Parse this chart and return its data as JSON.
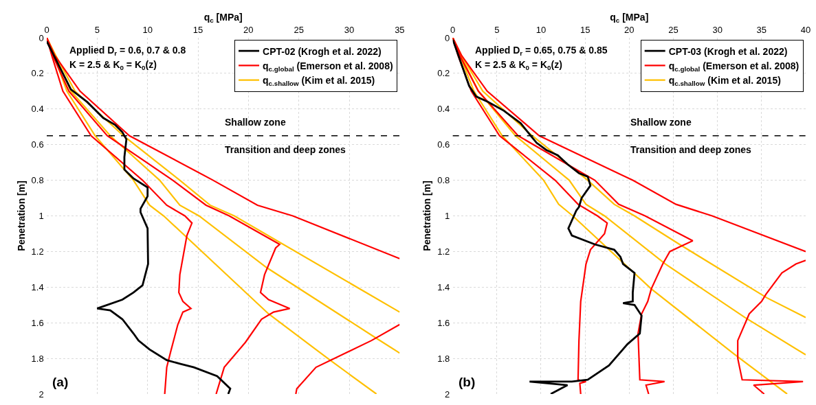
{
  "chart_data": [
    {
      "type": "line",
      "xlabel": "q$_{c}$ [MPa]",
      "ylabel": "Penetration [m]",
      "xlim": [
        0,
        35
      ],
      "xticks": [
        0,
        5,
        10,
        15,
        20,
        25,
        30,
        35
      ],
      "ylim": [
        2,
        0
      ],
      "yticks": [
        0,
        0.2,
        0.4,
        0.6,
        0.8,
        1,
        1.2,
        1.4,
        1.6,
        1.8,
        2
      ],
      "grid": true,
      "legend": "top right",
      "annotations": [
        "Applied D$_{r}$ = 0.6, 0.7 & 0.8",
        "K = 2.5 & K$_{0}$ = K$_{0}$(z)",
        "(a)",
        "Transition and deep zones"
      ],
      "ref_lines": [
        {
          "axis": "y",
          "value": 0.55,
          "label": "Shallow zone",
          "color": "#000000",
          "line_style": "dashed"
        }
      ],
      "series": [
        {
          "name": "CPT-02 (Krogh et al. 2022)",
          "color": "#000000",
          "x": [
            0,
            2.4,
            4.0,
            5.6,
            6.8,
            7.5,
            7.9,
            7.7,
            7.7,
            8.6,
            10.0,
            10.0,
            9.3,
            9.3,
            10.0,
            10.05,
            9.5,
            8.6,
            7.5,
            5.0,
            6.3,
            7.5,
            8.6,
            9.1,
            10.2,
            11.9,
            13.2,
            14.6,
            16.9,
            18.2,
            18.0
          ],
          "values": [
            0.02,
            0.29,
            0.36,
            0.45,
            0.49,
            0.53,
            0.57,
            0.67,
            0.74,
            0.79,
            0.84,
            0.89,
            0.96,
            0.98,
            1.07,
            1.27,
            1.39,
            1.43,
            1.47,
            1.52,
            1.53,
            1.58,
            1.66,
            1.7,
            1.75,
            1.81,
            1.83,
            1.85,
            1.9,
            1.97,
            2.0
          ]
        },
        {
          "name": "q$_{c.global}$ (Emerson et al. 2008)",
          "color": "#ff0000",
          "x": [
            0,
            0.5,
            1.6,
            4.4,
            9.5,
            11.9,
            13.7,
            14.4,
            13.9,
            13.2,
            13.1,
            13.5,
            14.3,
            13.5,
            13.0,
            12.3,
            11.9,
            11.7
          ],
          "values": [
            0,
            0.1,
            0.3,
            0.55,
            0.8,
            0.94,
            1.0,
            1.04,
            1.11,
            1.33,
            1.43,
            1.48,
            1.52,
            1.54,
            1.61,
            1.76,
            1.85,
            2.0
          ]
        },
        {
          "color": "#ff0000",
          "x": [
            0,
            0.6,
            2.2,
            6.0,
            12.5,
            15.8,
            18.1,
            23.1,
            22.7,
            21.6,
            21.2,
            22.0,
            24.1,
            22.5,
            21.3,
            19.7,
            17.6,
            16.8
          ],
          "values": [
            0,
            0.1,
            0.3,
            0.55,
            0.8,
            0.94,
            1.0,
            1.16,
            1.18,
            1.33,
            1.43,
            1.47,
            1.52,
            1.54,
            1.58,
            1.71,
            1.85,
            2.0
          ]
        },
        {
          "color": "#ff0000",
          "x": [
            0,
            0.8,
            3.3,
            8.2,
            16.5,
            20.9,
            24.4,
            35,
            null,
            35,
            32.2,
            26.7,
            24.8,
            24.7
          ],
          "values": [
            0,
            0.1,
            0.3,
            0.55,
            0.8,
            0.94,
            1.0,
            1.24,
            null,
            1.61,
            1.7,
            1.85,
            1.97,
            2.0
          ]
        },
        {
          "name": "q$_{c.shallow}$ (Kim et al. 2015)",
          "color": "#ffc000",
          "x": [
            0,
            0.7,
            2.0,
            4.8,
            8.6,
            10.2,
            11.6,
            22.0,
            28.1,
            32.7
          ],
          "values": [
            0,
            0.1,
            0.3,
            0.55,
            0.8,
            0.94,
            1.0,
            1.55,
            1.81,
            2.0
          ]
        },
        {
          "color": "#ffc000",
          "x": [
            0,
            0.8,
            2.4,
            6.3,
            11.2,
            13.2,
            15.1,
            21.8,
            32.5,
            35
          ],
          "values": [
            0,
            0.1,
            0.3,
            0.55,
            0.8,
            0.94,
            1.0,
            1.29,
            1.68,
            1.77
          ]
        },
        {
          "color": "#ffc000",
          "x": [
            0,
            0.9,
            2.8,
            7.6,
            13.2,
            16.2,
            18.6,
            35
          ],
          "values": [
            0,
            0.1,
            0.3,
            0.55,
            0.8,
            0.94,
            1.0,
            1.54
          ]
        }
      ]
    },
    {
      "type": "line",
      "xlabel": "q$_{c}$ [MPa]",
      "ylabel": "Penetration [m]",
      "xlim": [
        0,
        40
      ],
      "xticks": [
        0,
        5,
        10,
        15,
        20,
        25,
        30,
        35,
        40
      ],
      "ylim": [
        2,
        0
      ],
      "yticks": [
        0,
        0.2,
        0.4,
        0.6,
        0.8,
        1,
        1.2,
        1.4,
        1.6,
        1.8,
        2
      ],
      "grid": true,
      "legend": "top right",
      "annotations": [
        "Applied D$_{r}$ = 0.65, 0.75 & 0.85",
        "K = 2.5 & K$_{0}$ = K$_{0}$(z)",
        "(b)",
        "Transition and deep zones"
      ],
      "ref_lines": [
        {
          "axis": "y",
          "value": 0.55,
          "label": "Shallow zone",
          "color": "#000000",
          "line_style": "dashed"
        }
      ],
      "series": [
        {
          "name": "CPT-03 (Krogh et al. 2022)",
          "color": "#000000",
          "x": [
            0,
            1.85,
            2.65,
            4.0,
            5.8,
            7.7,
            9.0,
            9.5,
            10.6,
            11.9,
            13.0,
            14.3,
            15.3,
            15.6,
            14.6,
            14.3,
            14.0,
            13.1,
            13.5,
            16.1,
            18.3,
            19.0,
            19.3,
            20.6,
            20.4,
            20.4,
            19.3,
            20.6,
            21.4,
            21.2,
            19.8,
            17.7,
            15.3,
            13.5,
            8.7,
            13.0,
            11.1
          ],
          "values": [
            0.01,
            0.27,
            0.33,
            0.36,
            0.41,
            0.48,
            0.56,
            0.59,
            0.63,
            0.66,
            0.71,
            0.76,
            0.78,
            0.83,
            0.9,
            0.95,
            0.97,
            1.07,
            1.11,
            1.16,
            1.19,
            1.23,
            1.27,
            1.32,
            1.43,
            1.48,
            1.49,
            1.5,
            1.56,
            1.66,
            1.72,
            1.84,
            1.92,
            1.93,
            1.93,
            1.95,
            2.0
          ]
        },
        {
          "name": "q$_{c.global}$ (Emerson et al. 2008)",
          "color": "#ff0000",
          "x": [
            0,
            0.6,
            2.1,
            5.3,
            11.6,
            14.2,
            16.4,
            17.5,
            17.2,
            15.6,
            15.1,
            14.5,
            14.3,
            14.2,
            15.1,
            14.4,
            14.5
          ],
          "values": [
            0,
            0.1,
            0.3,
            0.55,
            0.8,
            0.935,
            1.0,
            1.04,
            1.1,
            1.19,
            1.27,
            1.48,
            1.7,
            1.92,
            1.93,
            1.94,
            2.0
          ]
        },
        {
          "color": "#ff0000",
          "x": [
            0,
            0.8,
            2.9,
            7.4,
            16.1,
            18.8,
            21.8,
            27.2,
            25.9,
            24.6,
            23.8,
            22.5,
            22.1,
            21.4,
            21.0,
            21.2,
            24.0,
            21.9,
            22.2
          ],
          "values": [
            0,
            0.1,
            0.3,
            0.55,
            0.8,
            0.935,
            1.0,
            1.14,
            1.17,
            1.2,
            1.27,
            1.41,
            1.48,
            1.55,
            1.66,
            1.92,
            1.93,
            1.95,
            2.0
          ]
        },
        {
          "color": "#ff0000",
          "x": [
            0,
            1.0,
            3.9,
            9.8,
            20.4,
            25.3,
            29.4,
            40,
            null,
            40,
            38.9,
            37.3,
            35.5,
            35.0,
            33.6,
            32.3,
            32.3,
            32.8,
            39.7,
            34.1,
            35.3
          ],
          "values": [
            0,
            0.1,
            0.3,
            0.55,
            0.8,
            0.935,
            1.0,
            1.2,
            null,
            1.25,
            1.27,
            1.32,
            1.44,
            1.48,
            1.55,
            1.7,
            1.8,
            1.92,
            1.93,
            1.95,
            2.0
          ]
        },
        {
          "name": "q$_{c.shallow}$ (Kim et al. 2015)",
          "color": "#ffc000",
          "x": [
            0,
            0.8,
            2.4,
            5.6,
            10.3,
            12.0,
            13.6,
            22.5,
            32.0,
            37.9
          ],
          "values": [
            0,
            0.1,
            0.3,
            0.55,
            0.8,
            0.935,
            1.0,
            1.41,
            1.78,
            2.0
          ]
        },
        {
          "color": "#ffc000",
          "x": [
            0,
            0.9,
            2.9,
            7.1,
            13.2,
            15.1,
            17.2,
            24.1,
            33.1,
            40
          ],
          "values": [
            0,
            0.1,
            0.3,
            0.55,
            0.8,
            0.935,
            1.0,
            1.27,
            1.57,
            1.78
          ]
        },
        {
          "color": "#ffc000",
          "x": [
            0,
            1.0,
            3.4,
            9.0,
            15.3,
            18.3,
            20.6,
            25.7,
            35.6,
            40
          ],
          "values": [
            0,
            0.1,
            0.3,
            0.55,
            0.8,
            0.935,
            1.0,
            1.16,
            1.46,
            1.57
          ]
        }
      ]
    }
  ]
}
